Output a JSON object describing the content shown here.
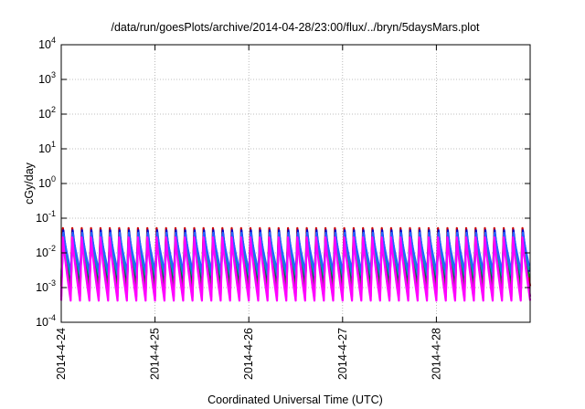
{
  "chart_data": {
    "type": "line",
    "title": "/data/run/goesPlots/archive/2014-04-28/23:00/flux/../bryn/5daysMars.plot",
    "xlabel": "Coordinated Universal Time (UTC)",
    "ylabel": "cGy/day",
    "yscale": "log",
    "ylim": [
      0.0001,
      10000
    ],
    "xlim": [
      "2014-04-24",
      "2014-04-29"
    ],
    "x_ticks": [
      "2014-4-24",
      "2014-4-25",
      "2014-4-26",
      "2014-4-27",
      "2014-4-28"
    ],
    "y_ticks": [
      {
        "base": "10",
        "exp": "-4",
        "value": 0.0001
      },
      {
        "base": "10",
        "exp": "-3",
        "value": 0.001
      },
      {
        "base": "10",
        "exp": "-2",
        "value": 0.01
      },
      {
        "base": "10",
        "exp": "-1",
        "value": 0.1
      },
      {
        "base": "10",
        "exp": "0",
        "value": 1
      },
      {
        "base": "10",
        "exp": "1",
        "value": 10
      },
      {
        "base": "10",
        "exp": "2",
        "value": 100
      },
      {
        "base": "10",
        "exp": "3",
        "value": 1000
      },
      {
        "base": "10",
        "exp": "4",
        "value": 10000
      }
    ],
    "grid": true,
    "legend": "none",
    "pattern": {
      "cycles_per_day": 10,
      "note_peak_range": [
        0.03,
        0.05
      ],
      "note_trough_range": [
        0.0004,
        0.003
      ]
    },
    "series": [
      {
        "color": "#cc0000",
        "peak": 0.052,
        "trough": 0.0011
      },
      {
        "color": "#009900",
        "peak": 0.04,
        "trough": 0.0012
      },
      {
        "color": "#0000cc",
        "peak": 0.045,
        "trough": 0.0018
      },
      {
        "color": "#cc00cc",
        "peak": 0.035,
        "trough": 0.00055
      },
      {
        "color": "#00aaaa",
        "peak": 0.03,
        "trough": 0.0022
      },
      {
        "color": "#2266ff",
        "peak": 0.038,
        "trough": 0.0028
      },
      {
        "color": "#ff00ff",
        "peak": 0.028,
        "trough": 0.00042
      }
    ]
  }
}
